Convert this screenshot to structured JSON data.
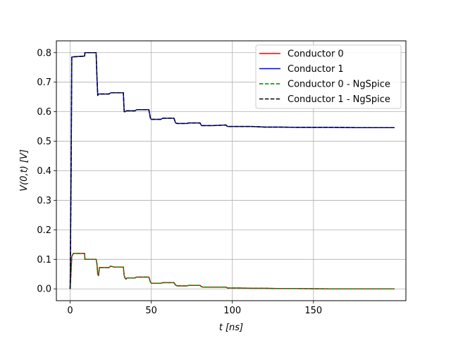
{
  "chart_data": {
    "type": "line",
    "xlabel_var": "t",
    "xlabel_unit": "[ns]",
    "ylabel_expr": "V(0,t)",
    "ylabel_unit": "[V]",
    "xlim": [
      -8.5,
      207
    ],
    "ylim": [
      -0.04,
      0.84
    ],
    "xticks": [
      0,
      50,
      100,
      150
    ],
    "yticks": [
      0.0,
      0.1,
      0.2,
      0.3,
      0.4,
      0.5,
      0.6,
      0.7,
      0.8
    ],
    "xtick_labels": [
      "0",
      "50",
      "100",
      "150"
    ],
    "ytick_labels": [
      "0.0",
      "0.1",
      "0.2",
      "0.3",
      "0.4",
      "0.5",
      "0.6",
      "0.7",
      "0.8"
    ],
    "grid": true,
    "legend_position": "top-right",
    "series": [
      {
        "name": "Conductor 0",
        "color": "#ff0000",
        "dash": "solid",
        "x": [
          0,
          0.6,
          1,
          2,
          8.9,
          9.1,
          16,
          16.5,
          17,
          17.5,
          18,
          24,
          25,
          27,
          32.8,
          33.3,
          34,
          34.5,
          35,
          40,
          41,
          48.5,
          49.5,
          50,
          56,
          57,
          64,
          65,
          66,
          72,
          73,
          80,
          81,
          82,
          88,
          96,
          97,
          104,
          112,
          120,
          128,
          140,
          160,
          180,
          200
        ],
        "y": [
          0.0,
          0.065,
          0.11,
          0.12,
          0.12,
          0.1,
          0.1,
          0.085,
          0.05,
          0.045,
          0.072,
          0.072,
          0.077,
          0.074,
          0.074,
          0.045,
          0.035,
          0.033,
          0.037,
          0.037,
          0.04,
          0.04,
          0.023,
          0.019,
          0.019,
          0.021,
          0.021,
          0.013,
          0.01,
          0.01,
          0.012,
          0.012,
          0.007,
          0.006,
          0.006,
          0.006,
          0.003,
          0.003,
          0.002,
          0.002,
          0.001,
          0.001,
          0.0,
          0.0,
          0.0
        ]
      },
      {
        "name": "Conductor 1",
        "color": "#0000ff",
        "dash": "solid",
        "x": [
          0,
          0.6,
          1,
          2,
          8.9,
          9.1,
          16,
          16.5,
          17,
          17.5,
          18,
          24,
          25,
          27,
          32.8,
          33.3,
          34,
          34.5,
          35,
          40,
          41,
          48.5,
          49.5,
          50,
          56,
          57,
          64,
          65,
          66,
          72,
          73,
          80,
          81,
          82,
          88,
          96,
          97,
          104,
          112,
          120,
          128,
          140,
          160,
          180,
          200
        ],
        "y": [
          0.0,
          0.4,
          0.785,
          0.786,
          0.788,
          0.8,
          0.8,
          0.72,
          0.655,
          0.66,
          0.66,
          0.66,
          0.664,
          0.664,
          0.664,
          0.6,
          0.6,
          0.603,
          0.603,
          0.603,
          0.607,
          0.607,
          0.578,
          0.574,
          0.574,
          0.578,
          0.578,
          0.562,
          0.56,
          0.56,
          0.562,
          0.562,
          0.553,
          0.553,
          0.553,
          0.555,
          0.55,
          0.55,
          0.55,
          0.548,
          0.548,
          0.547,
          0.547,
          0.546,
          0.546
        ]
      },
      {
        "name": "Conductor 0 - NgSpice",
        "color": "#008000",
        "dash": "dashed",
        "x": [
          0,
          0.6,
          1,
          2,
          8.9,
          9.1,
          16,
          16.5,
          17,
          17.5,
          18,
          24,
          25,
          27,
          32.8,
          33.3,
          34,
          34.5,
          35,
          40,
          41,
          48.5,
          49.5,
          50,
          56,
          57,
          64,
          65,
          66,
          72,
          73,
          80,
          81,
          82,
          88,
          96,
          97,
          104,
          112,
          120,
          128,
          140,
          160,
          180,
          200
        ],
        "y": [
          0.0,
          0.065,
          0.11,
          0.12,
          0.12,
          0.1,
          0.1,
          0.085,
          0.05,
          0.045,
          0.072,
          0.072,
          0.077,
          0.074,
          0.074,
          0.045,
          0.035,
          0.033,
          0.037,
          0.037,
          0.04,
          0.04,
          0.023,
          0.019,
          0.019,
          0.021,
          0.021,
          0.013,
          0.01,
          0.01,
          0.012,
          0.012,
          0.007,
          0.006,
          0.006,
          0.006,
          0.003,
          0.003,
          0.002,
          0.002,
          0.001,
          0.001,
          0.0,
          0.0,
          0.0
        ]
      },
      {
        "name": "Conductor 1 - NgSpice",
        "color": "#000000",
        "dash": "dashed",
        "x": [
          0,
          0.6,
          1,
          2,
          8.9,
          9.1,
          16,
          16.5,
          17,
          17.5,
          18,
          24,
          25,
          27,
          32.8,
          33.3,
          34,
          34.5,
          35,
          40,
          41,
          48.5,
          49.5,
          50,
          56,
          57,
          64,
          65,
          66,
          72,
          73,
          80,
          81,
          82,
          88,
          96,
          97,
          104,
          112,
          120,
          128,
          140,
          160,
          180,
          200
        ],
        "y": [
          0.0,
          0.4,
          0.785,
          0.786,
          0.788,
          0.8,
          0.8,
          0.72,
          0.655,
          0.66,
          0.66,
          0.66,
          0.664,
          0.664,
          0.664,
          0.6,
          0.6,
          0.603,
          0.603,
          0.603,
          0.607,
          0.607,
          0.578,
          0.574,
          0.574,
          0.578,
          0.578,
          0.562,
          0.56,
          0.56,
          0.562,
          0.562,
          0.553,
          0.553,
          0.553,
          0.555,
          0.55,
          0.55,
          0.55,
          0.548,
          0.548,
          0.547,
          0.547,
          0.546,
          0.546
        ]
      }
    ]
  }
}
